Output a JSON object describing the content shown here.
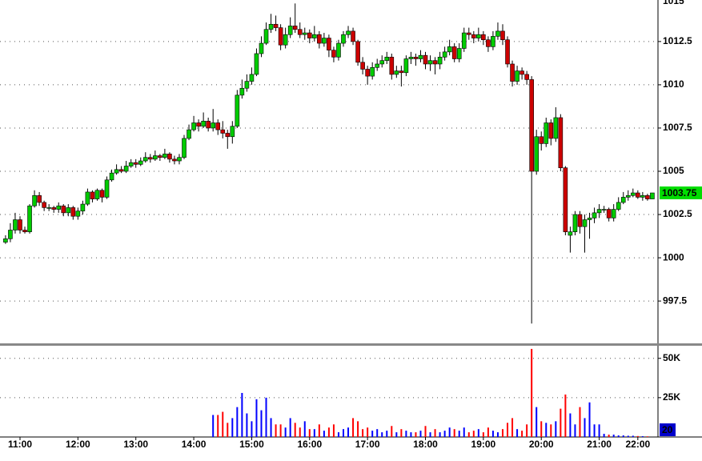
{
  "chart_data": {
    "type": "candlestick",
    "categories": [
      null,
      null,
      null,
      "11:00",
      null,
      null,
      null,
      null,
      null,
      null,
      null,
      null,
      null,
      null,
      null,
      "12:00",
      null,
      null,
      null,
      null,
      null,
      null,
      null,
      null,
      null,
      null,
      null,
      "13:00",
      null,
      null,
      null,
      null,
      null,
      null,
      null,
      null,
      null,
      null,
      null,
      "14:00",
      null,
      null,
      null,
      null,
      null,
      null,
      null,
      null,
      null,
      null,
      null,
      "15:00",
      null,
      null,
      null,
      null,
      null,
      null,
      null,
      null,
      null,
      null,
      null,
      "16:00",
      null,
      null,
      null,
      null,
      null,
      null,
      null,
      null,
      null,
      null,
      null,
      "17:00",
      null,
      null,
      null,
      null,
      null,
      null,
      null,
      null,
      null,
      null,
      null,
      "18:00",
      null,
      null,
      null,
      null,
      null,
      null,
      null,
      null,
      null,
      null,
      null,
      "19:00",
      null,
      null,
      null,
      null,
      null,
      null,
      null,
      null,
      null,
      null,
      null,
      "20:00",
      null,
      null,
      null,
      null,
      null,
      null,
      null,
      null,
      null,
      null,
      null,
      "21:00",
      null,
      null,
      null,
      null,
      null,
      null,
      null,
      "22:00",
      null,
      null,
      null
    ],
    "open": [
      1000.9,
      1001.1,
      1001.6,
      1002.2,
      1001.6,
      1001.5,
      1003.0,
      1003.6,
      1003.2,
      1002.9,
      1002.9,
      1002.8,
      1003.0,
      1002.6,
      1002.9,
      1002.4,
      1002.7,
      1003.1,
      1003.8,
      1003.4,
      1003.9,
      1003.5,
      1004.5,
      1004.9,
      1005.1,
      1005.0,
      1005.3,
      1005.5,
      1005.4,
      1005.6,
      1005.8,
      1005.7,
      1005.9,
      1005.8,
      1006.0,
      1005.7,
      1005.6,
      1005.8,
      1006.9,
      1007.4,
      1007.8,
      1007.6,
      1007.9,
      1007.5,
      1007.8,
      1007.4,
      1007.2,
      1007.0,
      1007.6,
      1009.4,
      1009.8,
      1010.2,
      1010.6,
      1011.8,
      1012.4,
      1013.2,
      1013.5,
      1013.3,
      1012.3,
      1012.9,
      1013.4,
      1013.2,
      1012.9,
      1013.0,
      1012.7,
      1012.9,
      1012.4,
      1012.7,
      1012.0,
      1011.6,
      1012.4,
      1012.9,
      1013.1,
      1012.5,
      1011.3,
      1010.9,
      1010.5,
      1011.0,
      1011.2,
      1011.4,
      1011.6,
      1010.6,
      1010.8,
      1010.7,
      1011.5,
      1011.6,
      1011.5,
      1011.7,
      1011.2,
      1011.4,
      1011.2,
      1011.6,
      1011.9,
      1012.2,
      1011.5,
      1012.1,
      1013.0,
      1012.9,
      1012.7,
      1012.9,
      1012.6,
      1012.2,
      1012.8,
      1013.1,
      1012.6,
      1011.2,
      1010.2,
      1010.8,
      1010.6,
      1010.3,
      1005.0,
      1007.0,
      1006.6,
      1007.8,
      1006.9,
      1008.1,
      1005.2,
      1001.3,
      1001.5,
      1002.5,
      1001.8,
      1002.2,
      1002.3,
      1002.6,
      1002.8,
      1002.8,
      1002.3,
      1002.8,
      1003.2,
      1003.5,
      1003.6,
      1003.75,
      1003.5,
      1003.6,
      1003.4
    ],
    "high": [
      1001.3,
      1002.0,
      1002.6,
      1002.4,
      1001.8,
      1003.1,
      1003.9,
      1003.8,
      1003.3,
      1003.1,
      1003.0,
      1003.2,
      1003.1,
      1003.1,
      1003.0,
      1002.9,
      1003.3,
      1004.0,
      1003.9,
      1004.0,
      1004.0,
      1004.7,
      1005.1,
      1005.4,
      1005.3,
      1005.6,
      1005.7,
      1005.7,
      1005.8,
      1006.1,
      1006.0,
      1006.2,
      1006.0,
      1006.3,
      1006.1,
      1005.9,
      1006.0,
      1007.1,
      1007.7,
      1008.2,
      1008.0,
      1008.4,
      1008.1,
      1008.6,
      1008.0,
      1007.9,
      1007.4,
      1007.9,
      1009.7,
      1010.3,
      1010.6,
      1011.0,
      1012.1,
      1012.8,
      1013.6,
      1014.1,
      1014.0,
      1013.5,
      1013.3,
      1013.9,
      1014.7,
      1013.6,
      1013.3,
      1013.2,
      1013.4,
      1013.1,
      1013.0,
      1012.9,
      1012.2,
      1012.6,
      1013.1,
      1013.4,
      1013.3,
      1012.6,
      1011.6,
      1011.1,
      1011.3,
      1011.5,
      1011.7,
      1011.9,
      1011.8,
      1011.1,
      1011.1,
      1011.7,
      1011.9,
      1011.8,
      1012.0,
      1011.9,
      1011.7,
      1011.6,
      1011.9,
      1012.2,
      1012.6,
      1012.4,
      1012.4,
      1013.3,
      1013.3,
      1013.1,
      1013.3,
      1013.1,
      1012.8,
      1013.1,
      1013.6,
      1013.5,
      1012.8,
      1011.4,
      1011.1,
      1011.0,
      1010.8,
      1010.5,
      1007.4,
      1007.3,
      1008.1,
      1008.0,
      1008.7,
      1008.3,
      1005.3,
      1001.8,
      1002.7,
      1002.7,
      1002.5,
      1002.6,
      1002.9,
      1003.1,
      1003.0,
      1002.9,
      1003.1,
      1003.5,
      1003.8,
      1003.9,
      1004.0,
      1003.9,
      1003.8,
      1003.7,
      1003.75
    ],
    "low": [
      1000.8,
      1000.9,
      1001.4,
      1001.4,
      1001.4,
      1001.4,
      1002.9,
      1003.0,
      1002.7,
      1002.7,
      1002.6,
      1002.6,
      1002.4,
      1002.4,
      1002.2,
      1002.2,
      1002.5,
      1003.0,
      1003.2,
      1003.3,
      1003.2,
      1003.4,
      1004.4,
      1004.8,
      1004.9,
      1004.9,
      1005.2,
      1005.2,
      1005.3,
      1005.5,
      1005.5,
      1005.6,
      1005.6,
      1005.7,
      1005.5,
      1005.4,
      1005.4,
      1005.7,
      1006.8,
      1007.3,
      1007.3,
      1007.5,
      1007.3,
      1007.3,
      1007.1,
      1006.9,
      1006.3,
      1006.6,
      1007.5,
      1009.2,
      1009.6,
      1010.0,
      1010.5,
      1011.6,
      1012.3,
      1013.0,
      1013.1,
      1012.0,
      1012.1,
      1012.7,
      1013.0,
      1012.7,
      1012.6,
      1012.4,
      1012.5,
      1012.1,
      1012.2,
      1011.6,
      1011.3,
      1011.4,
      1012.2,
      1012.7,
      1012.3,
      1011.1,
      1010.6,
      1010.0,
      1010.3,
      1010.8,
      1011.0,
      1011.2,
      1010.3,
      1010.4,
      1009.9,
      1010.5,
      1011.2,
      1011.1,
      1011.3,
      1010.9,
      1010.8,
      1010.6,
      1010.9,
      1011.4,
      1011.7,
      1011.3,
      1011.3,
      1011.9,
      1012.6,
      1012.4,
      1012.5,
      1012.3,
      1011.9,
      1012.0,
      1012.6,
      1012.3,
      1011.0,
      1009.9,
      1010.0,
      1010.3,
      1010.0,
      996.2,
      1004.8,
      1006.2,
      1006.4,
      1006.5,
      1006.7,
      1005.0,
      1001.3,
      1000.3,
      1001.3,
      1001.4,
      1000.3,
      1001.1,
      1002.0,
      1002.3,
      1002.6,
      1002.1,
      1002.1,
      1002.7,
      1003.1,
      1003.3,
      1003.5,
      1003.4,
      1003.3,
      1003.3,
      1003.4
    ],
    "close": [
      1001.1,
      1001.6,
      1002.2,
      1001.6,
      1001.5,
      1003.0,
      1003.6,
      1003.2,
      1002.9,
      1002.9,
      1002.8,
      1003.0,
      1002.6,
      1002.9,
      1002.4,
      1002.7,
      1003.1,
      1003.8,
      1003.4,
      1003.9,
      1003.5,
      1004.5,
      1004.9,
      1005.1,
      1005.0,
      1005.3,
      1005.5,
      1005.4,
      1005.6,
      1005.8,
      1005.7,
      1005.9,
      1005.8,
      1006.0,
      1005.7,
      1005.6,
      1005.8,
      1006.9,
      1007.4,
      1007.8,
      1007.6,
      1007.9,
      1007.5,
      1007.8,
      1007.4,
      1007.2,
      1007.0,
      1007.6,
      1009.4,
      1009.8,
      1010.2,
      1010.6,
      1011.8,
      1012.4,
      1013.2,
      1013.5,
      1013.3,
      1012.3,
      1012.9,
      1013.4,
      1013.2,
      1012.9,
      1013.0,
      1012.7,
      1012.9,
      1012.4,
      1012.7,
      1012.0,
      1011.6,
      1012.4,
      1012.9,
      1013.1,
      1012.5,
      1011.3,
      1010.9,
      1010.5,
      1011.0,
      1011.2,
      1011.4,
      1011.6,
      1010.6,
      1010.8,
      1010.7,
      1011.5,
      1011.6,
      1011.5,
      1011.7,
      1011.2,
      1011.4,
      1011.2,
      1011.6,
      1011.9,
      1012.2,
      1011.5,
      1012.1,
      1013.0,
      1012.9,
      1012.7,
      1012.9,
      1012.6,
      1012.2,
      1012.8,
      1013.1,
      1012.6,
      1011.2,
      1010.2,
      1010.8,
      1010.6,
      1010.3,
      1005.0,
      1007.0,
      1006.6,
      1007.8,
      1006.9,
      1008.1,
      1005.2,
      1001.5,
      1001.5,
      1002.5,
      1001.8,
      1002.2,
      1002.3,
      1002.6,
      1002.8,
      1002.8,
      1002.3,
      1002.8,
      1003.2,
      1003.5,
      1003.6,
      1003.75,
      1003.5,
      1003.6,
      1003.4,
      1003.75
    ],
    "volume": [
      0,
      0,
      0,
      0,
      0,
      0,
      0,
      0,
      0,
      0,
      0,
      0,
      0,
      0,
      0,
      0,
      0,
      0,
      0,
      0,
      0,
      0,
      0,
      0,
      0,
      0,
      0,
      0,
      0,
      0,
      0,
      0,
      0,
      0,
      0,
      0,
      0,
      0,
      0,
      0,
      0,
      0,
      0,
      14000,
      14000,
      16000,
      9000,
      12000,
      19000,
      28000,
      15000,
      10000,
      24000,
      17000,
      25000,
      12000,
      8000,
      8000,
      6000,
      12000,
      9000,
      6000,
      10000,
      5000,
      5000,
      8000,
      4000,
      6000,
      8000,
      3000,
      5000,
      6000,
      12000,
      10000,
      5000,
      6000,
      4000,
      5000,
      3000,
      4000,
      7000,
      3000,
      5000,
      4000,
      3000,
      3000,
      4000,
      7000,
      3000,
      5000,
      3000,
      4000,
      6000,
      5000,
      4000,
      6000,
      3000,
      4000,
      5000,
      3000,
      6000,
      4000,
      3000,
      5000,
      9000,
      12000,
      5000,
      4000,
      8000,
      56000,
      19000,
      10000,
      9000,
      8000,
      10000,
      18000,
      27000,
      15000,
      8000,
      19000,
      12000,
      22000,
      8000,
      8000,
      2000,
      1500,
      1500,
      1000,
      1000,
      800,
      800,
      600,
      500,
      400,
      20
    ],
    "up_color": "#00cc00",
    "down_color": "#cc0000",
    "volume_up_color": "#0000ff",
    "volume_down_color": "#ff0000",
    "ylim": [
      995.1,
      1014.9
    ],
    "yticks": [
      997.5,
      1000,
      1002.5,
      1005,
      1007.5,
      1010,
      1012.5,
      1015
    ],
    "volume_ylim": [
      0,
      58000
    ],
    "volume_yticks": [
      {
        "value": 50000,
        "label": "50K"
      },
      {
        "value": 25000,
        "label": "25K"
      }
    ],
    "grid": true
  }
}
